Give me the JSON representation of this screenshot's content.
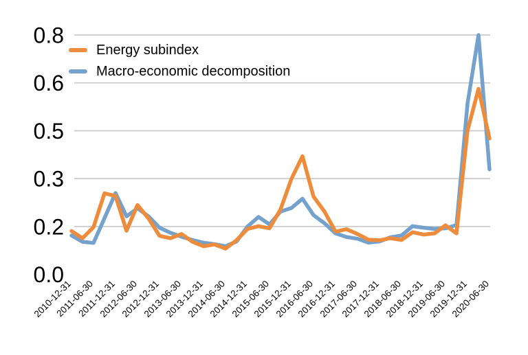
{
  "chart_data": {
    "type": "line",
    "title": "",
    "background": "#ffffff",
    "grid": {
      "horizontal": true,
      "vertical": false,
      "color": "#cccccc",
      "zero_line_drawn": false
    },
    "legend_position": "top-left inside plot area",
    "x_axis": {
      "type": "date",
      "data_frequency": "quarterly",
      "tick_label_rotation_deg": -45,
      "tick_labels": [
        "2010-12-31",
        "2011-06-30",
        "2011-12-31",
        "2012-06-30",
        "2012-12-31",
        "2013-06-30",
        "2013-12-31",
        "2014-06-30",
        "2014-12-31",
        "2015-06-30",
        "2015-12-31",
        "2016-06-30",
        "2016-12-31",
        "2017-06-30",
        "2017-12-31",
        "2018-06-30",
        "2018-12-31",
        "2019-06-30",
        "2019-12-31",
        "2020-06-30"
      ]
    },
    "y_axis": {
      "ylim": [
        0,
        0.8
      ],
      "tick_values": [
        0,
        0.16,
        0.32,
        0.48,
        0.64,
        0.8
      ],
      "tick_labels": [
        "0.0",
        "0.2",
        "0.3",
        "0.5",
        "0.6",
        "0.8"
      ]
    },
    "x": [
      "2010-12-31",
      "2011-03-31",
      "2011-06-30",
      "2011-09-30",
      "2011-12-31",
      "2012-03-31",
      "2012-06-30",
      "2012-09-30",
      "2012-12-31",
      "2013-03-31",
      "2013-06-30",
      "2013-09-30",
      "2013-12-31",
      "2014-03-31",
      "2014-06-30",
      "2014-09-30",
      "2014-12-31",
      "2015-03-31",
      "2015-06-30",
      "2015-09-30",
      "2015-12-31",
      "2016-03-31",
      "2016-06-30",
      "2016-09-30",
      "2016-12-31",
      "2017-03-31",
      "2017-06-30",
      "2017-09-30",
      "2017-12-31",
      "2018-03-31",
      "2018-06-30",
      "2018-09-30",
      "2018-12-31",
      "2019-03-31",
      "2019-06-30",
      "2019-09-30",
      "2019-12-31",
      "2020-03-31",
      "2020-06-30"
    ],
    "series": [
      {
        "name": "Energy subindex",
        "color": "#ED8C3C",
        "values": [
          0.145,
          0.121,
          0.158,
          0.271,
          0.262,
          0.146,
          0.232,
          0.187,
          0.129,
          0.121,
          0.135,
          0.109,
          0.094,
          0.1,
          0.086,
          0.114,
          0.152,
          0.161,
          0.154,
          0.217,
          0.32,
          0.395,
          0.26,
          0.21,
          0.143,
          0.151,
          0.135,
          0.116,
          0.114,
          0.121,
          0.115,
          0.141,
          0.133,
          0.137,
          0.164,
          0.137,
          0.48,
          0.62,
          0.454
        ]
      },
      {
        "name": "Macro-economic decomposition",
        "color": "#74A2CC",
        "values": [
          0.13,
          0.109,
          0.105,
          0.188,
          0.272,
          0.194,
          0.221,
          0.194,
          0.156,
          0.139,
          0.126,
          0.115,
          0.106,
          0.101,
          0.094,
          0.11,
          0.16,
          0.192,
          0.167,
          0.21,
          0.222,
          0.253,
          0.198,
          0.171,
          0.137,
          0.125,
          0.119,
          0.106,
          0.11,
          0.124,
          0.13,
          0.161,
          0.156,
          0.152,
          0.154,
          0.165,
          0.57,
          0.8,
          0.351
        ]
      }
    ]
  }
}
